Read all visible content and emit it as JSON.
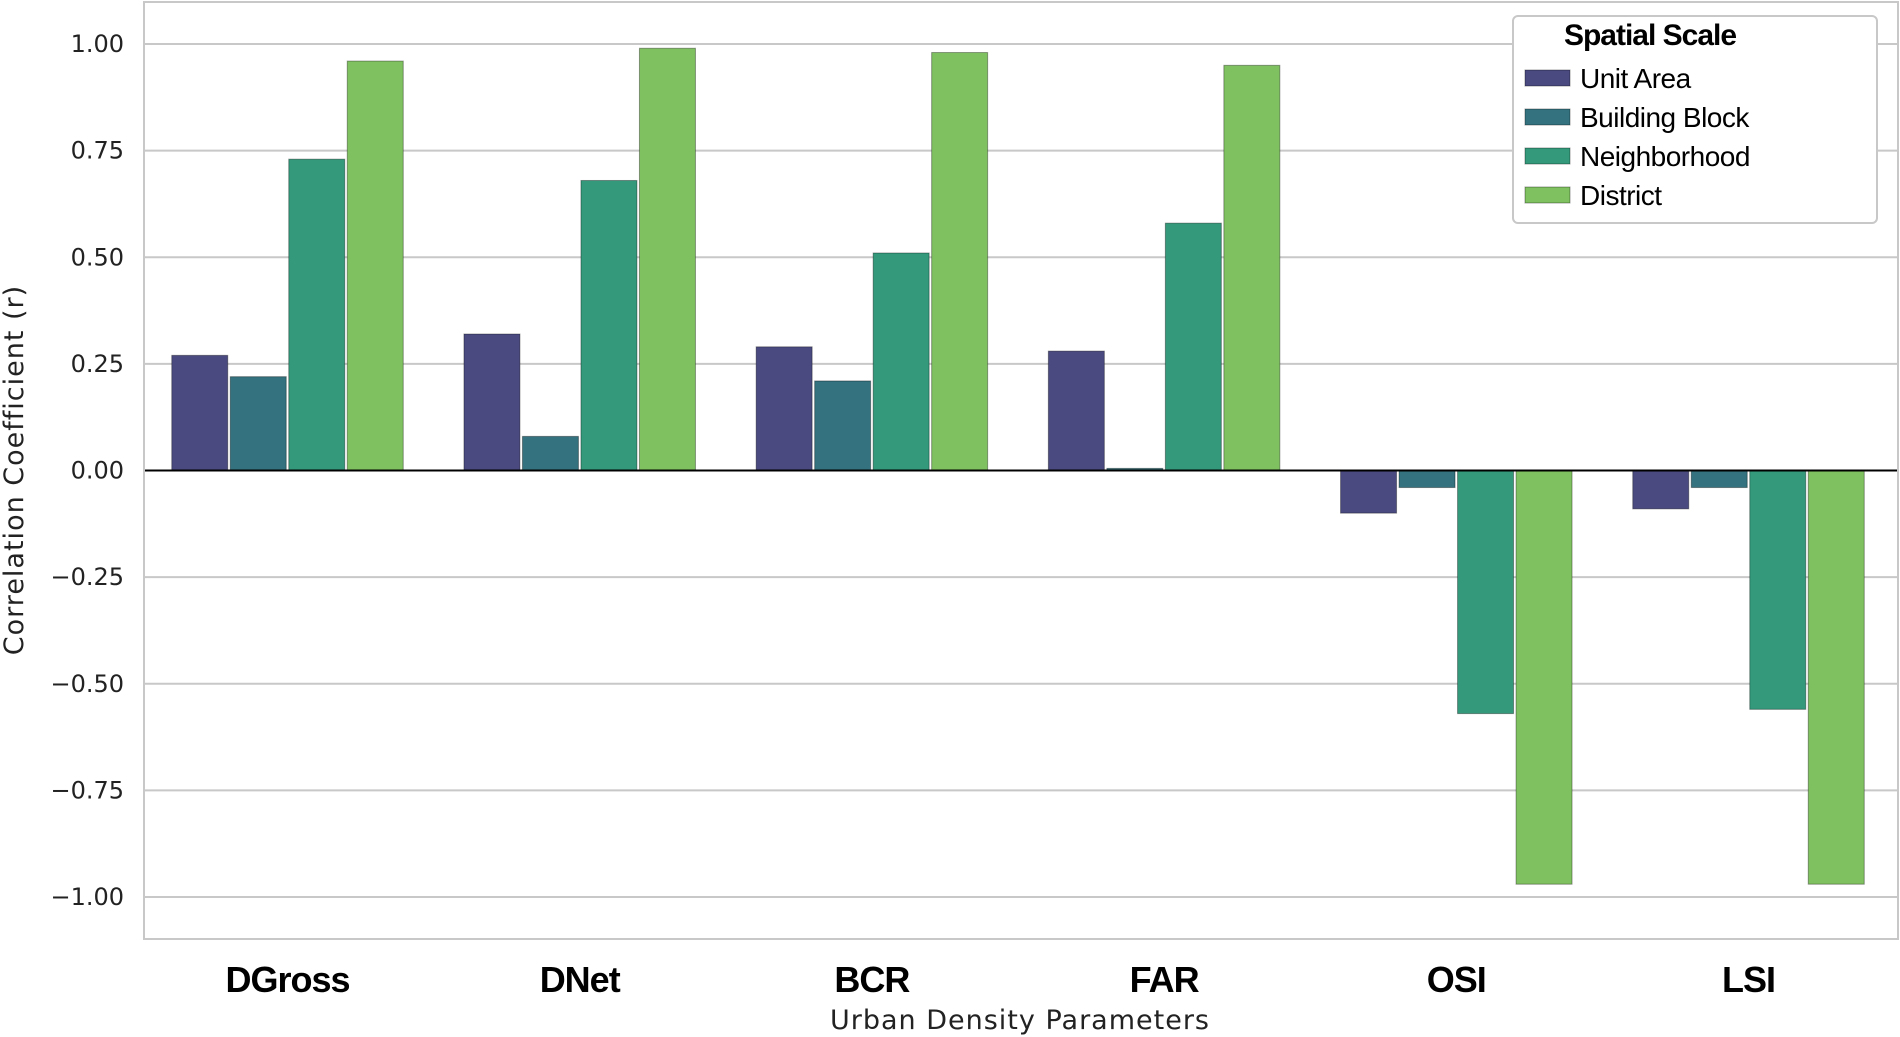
{
  "chart_data": {
    "type": "bar",
    "categories": [
      "DGross",
      "DNet",
      "BCR",
      "FAR",
      "OSI",
      "LSI"
    ],
    "series": [
      {
        "name": "Unit Area",
        "color": "#4a4a80",
        "values": [
          0.27,
          0.32,
          0.29,
          0.28,
          -0.1,
          -0.09
        ]
      },
      {
        "name": "Building Block",
        "color": "#33727e",
        "values": [
          0.22,
          0.08,
          0.21,
          0.005,
          -0.04,
          -0.04
        ]
      },
      {
        "name": "Neighborhood",
        "color": "#33997a",
        "values": [
          0.73,
          0.68,
          0.51,
          0.58,
          -0.57,
          -0.56
        ]
      },
      {
        "name": "District",
        "color": "#7fc160",
        "values": [
          0.96,
          0.99,
          0.98,
          0.95,
          -0.97,
          -0.97
        ]
      }
    ],
    "xlabel": "Urban Density Parameters",
    "ylabel": "Correlation Coefficient (r)",
    "ylim": [
      -1.1,
      1.1
    ],
    "yticks": [
      {
        "value": 1.0,
        "label": "1.00"
      },
      {
        "value": 0.75,
        "label": "0.75"
      },
      {
        "value": 0.5,
        "label": "0.50"
      },
      {
        "value": 0.25,
        "label": "0.25"
      },
      {
        "value": 0.0,
        "label": "0.00"
      },
      {
        "value": -0.25,
        "label": "−0.25"
      },
      {
        "value": -0.5,
        "label": "−0.50"
      },
      {
        "value": -0.75,
        "label": "−0.75"
      },
      {
        "value": -1.0,
        "label": "−1.00"
      }
    ],
    "grid": true,
    "legend": {
      "title": "Spatial Scale",
      "position": "top-right"
    }
  }
}
